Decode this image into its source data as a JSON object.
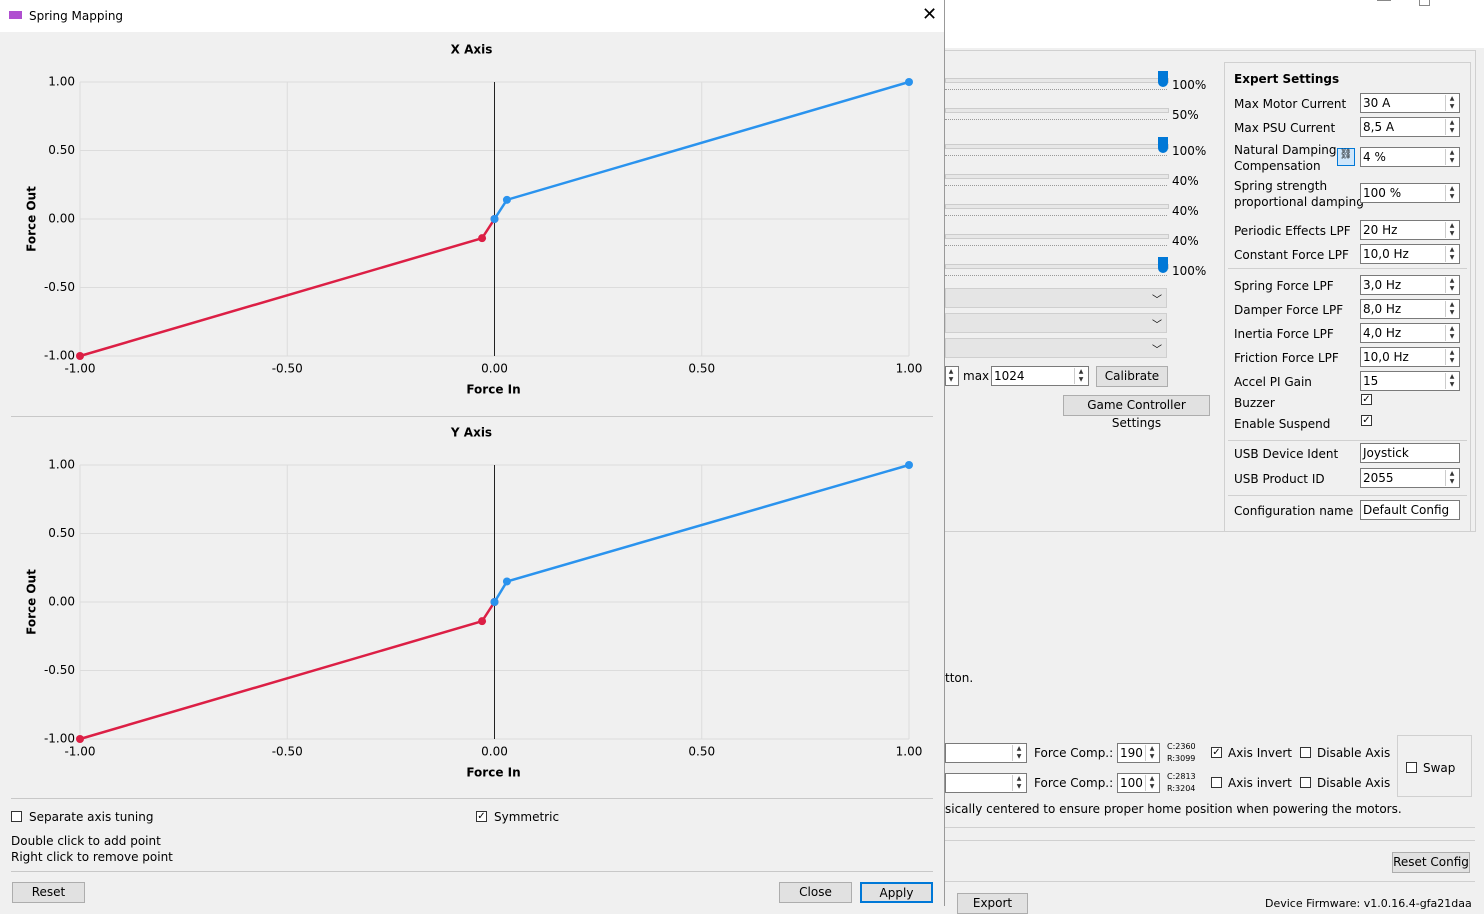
{
  "dialog": {
    "title": "Spring Mapping",
    "separate_axis_tuning": {
      "label": "Separate axis tuning",
      "checked": false
    },
    "symmetric": {
      "label": "Symmetric",
      "checked": true
    },
    "hints": [
      "Double click to add point",
      "Right click to remove point"
    ],
    "reset": "Reset",
    "close": "Close",
    "apply": "Apply"
  },
  "chart_data": [
    {
      "type": "line",
      "title": "X Axis",
      "x_label": "Force In",
      "y_label": "Force Out",
      "xlim": [
        -1,
        1
      ],
      "ylim": [
        -1,
        1
      ],
      "xticks": [
        {
          "value": -1,
          "label": "-1.00"
        },
        {
          "value": -0.5,
          "label": "-0.50"
        },
        {
          "value": 0,
          "label": "0.00"
        },
        {
          "value": 0.5,
          "label": "0.50"
        },
        {
          "value": 1,
          "label": "1.00"
        }
      ],
      "yticks": [
        {
          "value": -1,
          "label": "-1.00"
        },
        {
          "value": -0.5,
          "label": "-0.50"
        },
        {
          "value": 0,
          "label": "0.00"
        },
        {
          "value": 0.5,
          "label": "0.50"
        },
        {
          "value": 1,
          "label": "1.00"
        }
      ],
      "grid": true,
      "series": [
        {
          "color": "#dc1f45",
          "x": [
            -1,
            -0.03,
            0
          ],
          "values": [
            -1,
            -0.14,
            0
          ]
        },
        {
          "color": "#2a93ee",
          "x": [
            0,
            0.03,
            1
          ],
          "values": [
            0,
            0.14,
            1
          ]
        }
      ]
    },
    {
      "type": "line",
      "title": "Y Axis",
      "x_label": "Force In",
      "y_label": "Force Out",
      "xlim": [
        -1,
        1
      ],
      "ylim": [
        -1,
        1
      ],
      "xticks": [
        {
          "value": -1,
          "label": "-1.00"
        },
        {
          "value": -0.5,
          "label": "-0.50"
        },
        {
          "value": 0,
          "label": "0.00"
        },
        {
          "value": 0.5,
          "label": "0.50"
        },
        {
          "value": 1,
          "label": "1.00"
        }
      ],
      "yticks": [
        {
          "value": -1,
          "label": "-1.00"
        },
        {
          "value": -0.5,
          "label": "-0.50"
        },
        {
          "value": 0,
          "label": "0.00"
        },
        {
          "value": 0.5,
          "label": "0.50"
        },
        {
          "value": 1,
          "label": "1.00"
        }
      ],
      "grid": true,
      "series": [
        {
          "color": "#dc1f45",
          "x": [
            -1,
            -0.03,
            0
          ],
          "values": [
            -1,
            -0.14,
            0
          ]
        },
        {
          "color": "#2a93ee",
          "x": [
            0,
            0.03,
            1
          ],
          "values": [
            0,
            0.15,
            1
          ]
        }
      ]
    }
  ],
  "background": {
    "slider_percents": [
      "100%",
      "50%",
      "100%",
      "40%",
      "40%",
      "40%",
      "100%"
    ],
    "max_label": "max",
    "max_value": "1024",
    "calibrate": "Calibrate",
    "game_controller_settings": "Game Controller Settings",
    "expert_title": "Expert Settings",
    "expert_rows": [
      {
        "label": "Max Motor Current",
        "value": "30 A",
        "kind": "spin"
      },
      {
        "label": "Max PSU Current",
        "value": "8,5 A",
        "kind": "spin"
      },
      {
        "label": "Natural Damping\nCompensation",
        "value": "4 %",
        "kind": "spin"
      },
      {
        "label": "Spring strength\nproportional damping",
        "value": "100 %",
        "kind": "spin"
      },
      {
        "label": "Periodic Effects LPF",
        "value": "20 Hz",
        "kind": "spin"
      },
      {
        "label": "Constant Force LPF",
        "value": "10,0 Hz",
        "kind": "spin"
      },
      {
        "label": "Spring Force LPF",
        "value": "3,0 Hz",
        "kind": "spin"
      },
      {
        "label": "Damper Force LPF",
        "value": "8,0 Hz",
        "kind": "spin"
      },
      {
        "label": "Inertia Force LPF",
        "value": "4,0 Hz",
        "kind": "spin"
      },
      {
        "label": "Friction Force LPF",
        "value": "10,0 Hz",
        "kind": "spin"
      },
      {
        "label": "Accel PI Gain",
        "value": "15",
        "kind": "spin"
      },
      {
        "label": "Buzzer",
        "checked": true,
        "kind": "check"
      },
      {
        "label": "Enable Suspend",
        "checked": true,
        "kind": "check"
      },
      {
        "label": "USB Device Ident",
        "value": "Joystick",
        "kind": "text"
      },
      {
        "label": "USB Product ID",
        "value": "2055",
        "kind": "spin"
      },
      {
        "label": "Configuration name",
        "value": "Default Config",
        "kind": "text"
      }
    ],
    "hint_fragment": "tton.",
    "axis_rows": [
      {
        "force_comp_label": "Force Comp.:",
        "force_comp": "190",
        "c": "C:2360",
        "r": "R:3099",
        "invert": {
          "label": "Axis Invert",
          "checked": true
        },
        "disable": {
          "label": "Disable Axis",
          "checked": false
        }
      },
      {
        "force_comp_label": "Force Comp.:",
        "force_comp": "100",
        "c": "C:2813",
        "r": "R:3204",
        "invert": {
          "label": "Axis invert",
          "checked": false
        },
        "disable": {
          "label": "Disable Axis",
          "checked": false
        }
      }
    ],
    "swap": {
      "label": "Swap",
      "checked": false
    },
    "note": "sically centered to ensure proper home position when powering the motors.",
    "reset_config": "Reset Config",
    "export": "Export",
    "firmware": "Device Firmware: v1.0.16.4-gfa21daa"
  }
}
